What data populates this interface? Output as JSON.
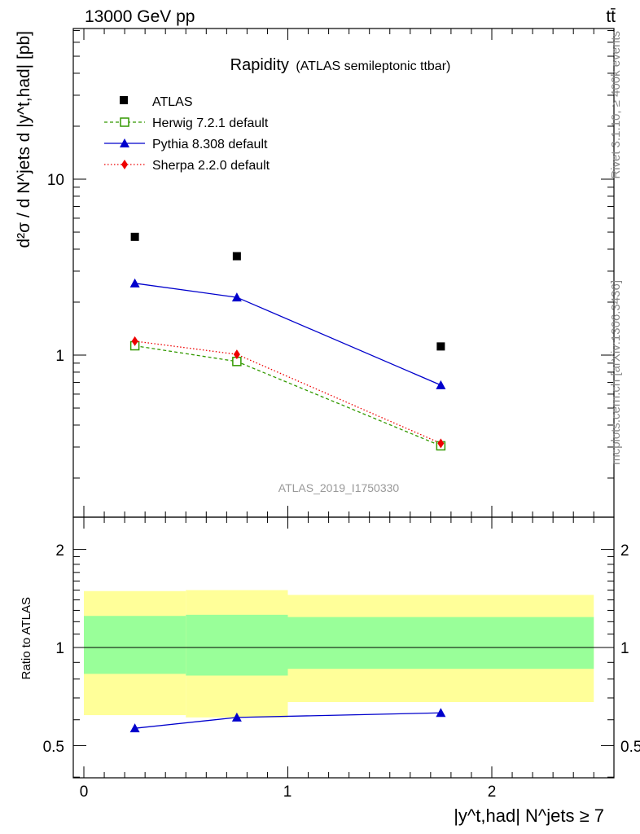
{
  "header": {
    "energy_label": "13000 GeV pp",
    "process_label": "tt̄"
  },
  "side_text": {
    "rivet_label": "Rivet 3.1.10, ≥ 400k events",
    "source_label": "mcplots.cern.ch [arXiv:1306.3436]"
  },
  "main_plot": {
    "title": "Rapidity",
    "subtitle": "(ATLAS semileptonic ttbar)",
    "ylabel": "d²σ / d N^jets d |y^t,had| [pb]",
    "analysis_label": "ATLAS_2019_I1750330",
    "ytick_labels": [
      "1",
      "10"
    ]
  },
  "ratio_plot": {
    "ylabel": "Ratio to ATLAS",
    "ytick_labels": [
      "0.5",
      "1",
      "2"
    ]
  },
  "xaxis": {
    "label": "|y^t,had| N^jets ≥ 7",
    "tick_labels": [
      "0",
      "1",
      "2"
    ]
  },
  "legend": {
    "entries": [
      {
        "label": "ATLAS"
      },
      {
        "label": "Herwig 7.2.1 default"
      },
      {
        "label": "Pythia 8.308 default"
      },
      {
        "label": "Sherpa 2.2.0 default"
      }
    ]
  },
  "chart_data": {
    "type": "scatter",
    "title": "Rapidity",
    "xlabel": "|y^t,had| N^jets ≥ 7",
    "ylabel": "d²σ / d N^jets d |y^t,had| [pb]",
    "xlim": [
      -0.05,
      2.55
    ],
    "ylim": [
      0.15,
      70
    ],
    "yscale": "log",
    "ratio_ylim": [
      0.4,
      2.5
    ],
    "ratio_yscale": "log",
    "bins": [
      [
        0,
        0.5
      ],
      [
        0.5,
        1.0
      ],
      [
        1.0,
        2.5
      ]
    ],
    "x": [
      0.25,
      0.75,
      1.75
    ],
    "series": [
      {
        "name": "ATLAS",
        "values": [
          4.7,
          3.65,
          1.12
        ],
        "color": "#000000",
        "marker": "square"
      },
      {
        "name": "Herwig 7.2.1 default",
        "values": [
          1.13,
          0.92,
          0.305
        ],
        "color": "#339900",
        "marker": "open-square",
        "line": "dashed"
      },
      {
        "name": "Pythia 8.308 default",
        "values": [
          2.56,
          2.13,
          0.675
        ],
        "color": "#0000cc",
        "marker": "triangle",
        "line": "solid"
      },
      {
        "name": "Sherpa 2.2.0 default",
        "values": [
          1.2,
          1.01,
          0.315
        ],
        "color": "#ee0000",
        "marker": "diamond",
        "line": "dotted"
      }
    ],
    "ratio_series": [
      {
        "name": "Pythia 8.308 default",
        "values": [
          0.565,
          0.61,
          0.63
        ],
        "color": "#0000cc"
      }
    ],
    "uncertainty_bands": {
      "stat_color": "#99ff99",
      "total_color": "#ffff99",
      "inner": [
        [
          0.83,
          1.25
        ],
        [
          0.82,
          1.26
        ],
        [
          0.86,
          1.24
        ]
      ],
      "outer": [
        [
          0.62,
          1.49
        ],
        [
          0.61,
          1.5
        ],
        [
          0.68,
          1.45
        ]
      ]
    },
    "grid": false,
    "legend_position": "top-left"
  }
}
